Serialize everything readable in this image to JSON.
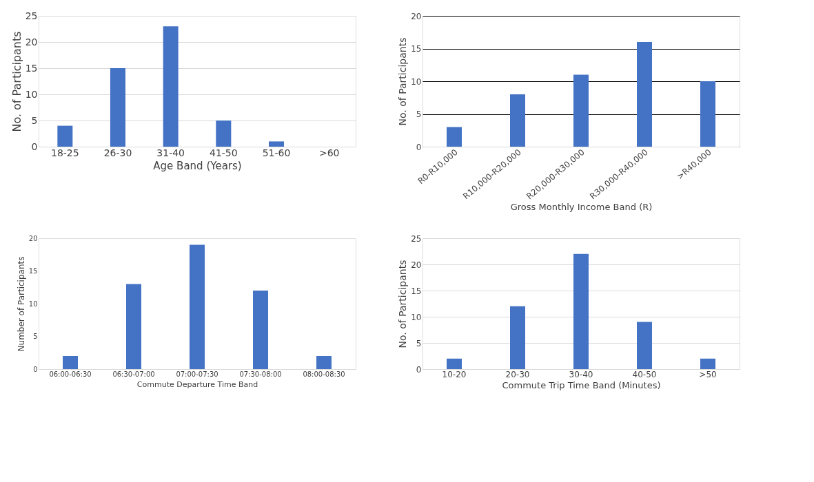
{
  "chart_data": [
    {
      "type": "bar",
      "xlabel": "Age Band (Years)",
      "ylabel": "No. of Participants",
      "categories": [
        "18-25",
        "26-30",
        "31-40",
        "41-50",
        "51-60",
        ">60"
      ],
      "values": [
        4,
        15,
        23,
        5,
        1,
        0
      ],
      "color": "#4472c4",
      "ylim": [
        0,
        25
      ],
      "yticks": [
        0,
        5,
        10,
        15,
        20,
        25
      ],
      "grid": "y"
    },
    {
      "type": "bar",
      "xlabel": "Gross Monthly Income Band (R)",
      "ylabel": "No. of Participants",
      "categories": [
        "R0-R10,000",
        "R10,000-R20,000",
        "R20,000-R30,000",
        "R30,000-R40,000",
        ">R40,000"
      ],
      "values": [
        3,
        8,
        11,
        16,
        10
      ],
      "color": "#4472c4",
      "ylim": [
        0,
        20
      ],
      "yticks": [
        0,
        5,
        10,
        15,
        20
      ],
      "grid": "y"
    },
    {
      "type": "bar",
      "xlabel": "Commute  Departure Time Band",
      "ylabel": "Number of Participants",
      "categories": [
        "06:00-06:30",
        "06:30-07:00",
        "07:00-07:30",
        "07:30-08:00",
        "08:00-08:30"
      ],
      "values": [
        2,
        13,
        19,
        12,
        2
      ],
      "color": "#4472c4",
      "ylim": [
        0,
        20
      ],
      "yticks": [
        0,
        5,
        10,
        15,
        20
      ],
      "grid": false
    },
    {
      "type": "bar",
      "xlabel": "Commute  Trip Time Band (Minutes)",
      "ylabel": "No. of Participants",
      "categories": [
        "10-20",
        "20-30",
        "30-40",
        "40-50",
        ">50"
      ],
      "values": [
        2,
        12,
        22,
        9,
        2
      ],
      "color": "#4472c4",
      "ylim": [
        0,
        25
      ],
      "yticks": [
        0,
        5,
        10,
        15,
        20,
        25
      ],
      "grid": "y"
    }
  ]
}
